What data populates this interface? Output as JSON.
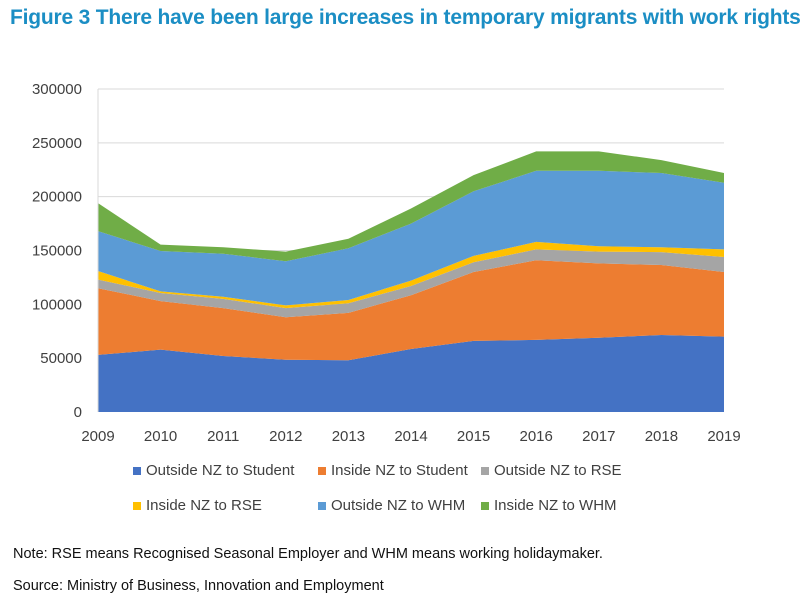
{
  "title": "Figure 3 There have been large increases in temporary migrants with work rights",
  "notes": {
    "note": "Note: RSE means Recognised Seasonal Employer and WHM means working holidaymaker.",
    "source": "Source: Ministry of Business, Innovation and Employment"
  },
  "chart_data": {
    "type": "area",
    "stacked": true,
    "title": "Figure 3 There have been large increases in temporary migrants with work rights",
    "xlabel": "",
    "ylabel": "",
    "x": [
      "2009",
      "2010",
      "2011",
      "2012",
      "2013",
      "2014",
      "2015",
      "2016",
      "2017",
      "2018",
      "2019"
    ],
    "ylim": [
      0,
      300000
    ],
    "yticks": [
      "0",
      "50000",
      "100000",
      "150000",
      "200000",
      "250000",
      "300000"
    ],
    "grid": true,
    "legend_position": "bottom",
    "series": [
      {
        "name": "Outside NZ to Student",
        "color": "#4472C4",
        "values": [
          53000,
          58000,
          52000,
          48500,
          48000,
          58500,
          66000,
          67000,
          69000,
          71500,
          70000
        ]
      },
      {
        "name": "Inside NZ to Student",
        "color": "#ED7D31",
        "values": [
          62000,
          45000,
          44500,
          39500,
          44000,
          50000,
          64000,
          74000,
          69000,
          65000,
          60000
        ]
      },
      {
        "name": "Outside NZ to RSE",
        "color": "#A5A5A5",
        "values": [
          8000,
          7500,
          8500,
          8500,
          9000,
          8500,
          9000,
          10000,
          11000,
          12000,
          14000
        ]
      },
      {
        "name": "Inside NZ to RSE",
        "color": "#FFC000",
        "values": [
          8000,
          1500,
          2000,
          2500,
          3000,
          5000,
          6000,
          7000,
          5000,
          4500,
          7000
        ]
      },
      {
        "name": "Outside NZ to WHM",
        "color": "#5B9BD5",
        "values": [
          37000,
          37500,
          40000,
          41000,
          48000,
          53000,
          60000,
          66000,
          70000,
          69000,
          62000
        ]
      },
      {
        "name": "Inside NZ to WHM",
        "color": "#70AD47",
        "values": [
          26000,
          6000,
          6000,
          9000,
          9000,
          14000,
          15000,
          18000,
          18000,
          12000,
          9000
        ]
      }
    ]
  }
}
